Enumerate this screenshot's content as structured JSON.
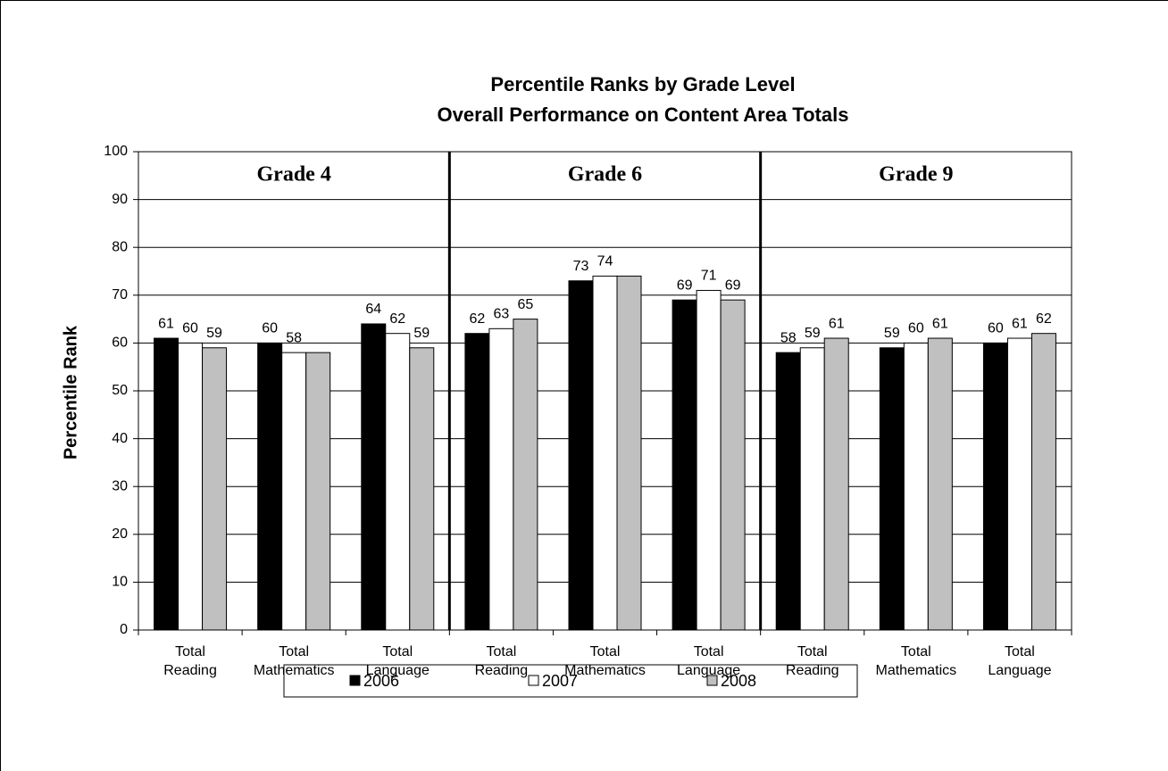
{
  "chart_data": {
    "type": "bar",
    "title": "Percentile Ranks by Grade Level",
    "subtitle": "Overall Performance on Content Area Totals",
    "y_label": "Percentile Rank",
    "groups": [
      "Grade 4",
      "Grade 6",
      "Grade 9"
    ],
    "categories": [
      "Total Reading",
      "Total Mathematics",
      "Total Language",
      "Total Reading",
      "Total Mathematics",
      "Total Language",
      "Total Reading",
      "Total Mathematics",
      "Total Language"
    ],
    "series": [
      {
        "name": "2006",
        "color": "#000000",
        "values": [
          61,
          60,
          64,
          62,
          73,
          69,
          58,
          59,
          60
        ]
      },
      {
        "name": "2007",
        "color": "#ffffff",
        "values": [
          60,
          58,
          62,
          63,
          74,
          71,
          59,
          60,
          61
        ]
      },
      {
        "name": "2008",
        "color": "#c0c0c0",
        "values": [
          59,
          58,
          59,
          65,
          74,
          69,
          61,
          61,
          62
        ],
        "value_labels": [
          59,
          null,
          59,
          65,
          null,
          69,
          61,
          61,
          62
        ]
      }
    ],
    "ylim": [
      0,
      100
    ],
    "yticks": [
      0,
      10,
      20,
      30,
      40,
      50,
      60,
      70,
      80,
      90,
      100
    ],
    "grid": true,
    "legend": "bottom"
  }
}
